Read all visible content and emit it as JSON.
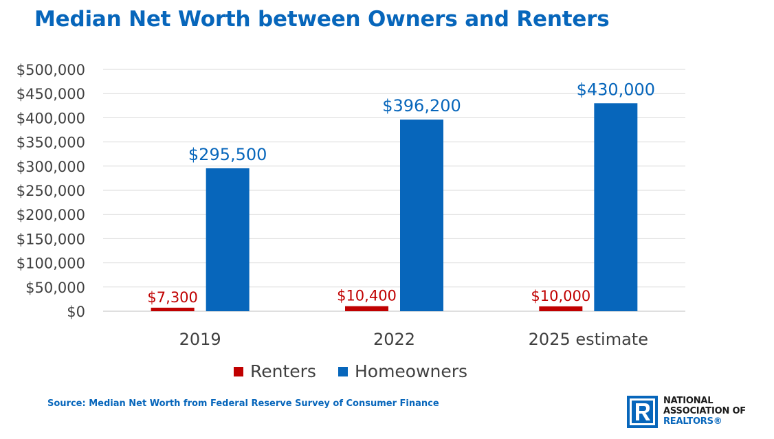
{
  "title": "Median Net Worth between Owners and Renters",
  "source": "Source: Median Net Worth from Federal Reserve Survey of Consumer Finance",
  "logo": {
    "line1": "NATIONAL",
    "line2": "ASSOCIATION OF",
    "line3": "REALTORS®"
  },
  "colors": {
    "title": "#0766BB",
    "renters": "#C00000",
    "homeowners": "#0766BB",
    "axis_text": "#404040",
    "grid": "#D9D9D9"
  },
  "chart_data": {
    "type": "bar",
    "categories": [
      "2019",
      "2022",
      "2025 estimate"
    ],
    "series": [
      {
        "name": "Renters",
        "values": [
          7300,
          10400,
          10000
        ],
        "labels": [
          "$7,300",
          "$10,400",
          "$10,000"
        ]
      },
      {
        "name": "Homeowners",
        "values": [
          295500,
          396200,
          430000
        ],
        "labels": [
          "$295,500",
          "$396,200",
          "$430,000"
        ]
      }
    ],
    "ylim": [
      0,
      500000
    ],
    "yticks": [
      0,
      50000,
      100000,
      150000,
      200000,
      250000,
      300000,
      350000,
      400000,
      450000,
      500000
    ],
    "ytick_labels": [
      "$0",
      "$50,000",
      "$100,000",
      "$150,000",
      "$200,000",
      "$250,000",
      "$300,000",
      "$350,000",
      "$400,000",
      "$450,000",
      "$500,000"
    ],
    "grid": true,
    "legend_position": "bottom"
  }
}
